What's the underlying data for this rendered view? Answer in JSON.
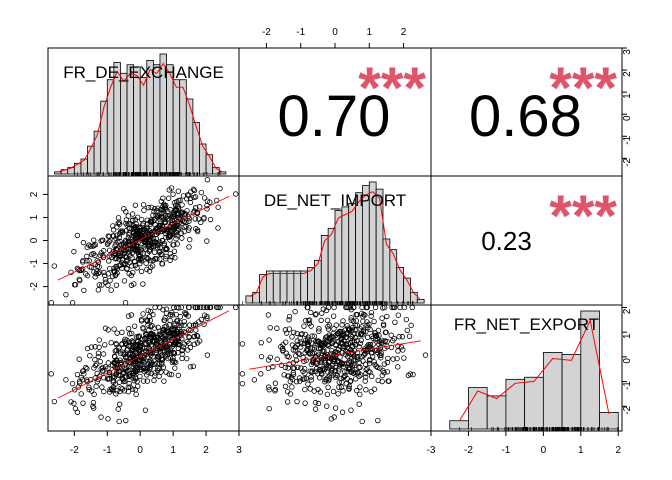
{
  "chart_data": {
    "type": "scatter-matrix",
    "variables": [
      "FR_DE_EXCHANGE",
      "DE_NET_IMPORT",
      "FR_NET_EXPORT"
    ],
    "correlations": [
      {
        "row": 0,
        "col": 1,
        "value": "0.70",
        "stars": "***"
      },
      {
        "row": 0,
        "col": 2,
        "value": "0.68",
        "stars": "***"
      },
      {
        "row": 1,
        "col": 2,
        "value": "0.23",
        "stars": "***"
      }
    ],
    "axis_ranges": {
      "FR_DE_EXCHANGE": [
        -2.8,
        3.0
      ],
      "DE_NET_IMPORT": [
        -2.8,
        2.8
      ],
      "FR_NET_EXPORT": [
        -3.0,
        2.1
      ]
    },
    "ticks": {
      "top_axis": [
        "-2",
        "-1",
        "0",
        "1",
        "2"
      ],
      "right_axis_row1": [
        "-2",
        "-1",
        "0",
        "1",
        "2",
        "3"
      ],
      "left_axis_row2": [
        "-2",
        "-1",
        "0",
        "1",
        "2"
      ],
      "right_axis_row3": [
        "-2",
        "-1",
        "0",
        "1",
        "2"
      ],
      "bottom_axis_col1": [
        "-2",
        "-1",
        "0",
        "1",
        "2",
        "3"
      ],
      "bottom_axis_col3": [
        "-3",
        "-2",
        "-1",
        "0",
        "1",
        "2"
      ]
    },
    "histograms": {
      "FR_DE_EXCHANGE": {
        "breaks": [
          -2.6,
          -2.4,
          -2.2,
          -2.0,
          -1.8,
          -1.6,
          -1.4,
          -1.2,
          -1.0,
          -0.8,
          -0.6,
          -0.4,
          -0.2,
          0.0,
          0.2,
          0.4,
          0.6,
          0.8,
          1.0,
          1.2,
          1.4,
          1.6,
          1.8,
          2.0,
          2.2,
          2.4,
          2.6
        ],
        "counts": [
          1,
          2,
          3,
          5,
          7,
          13,
          20,
          34,
          44,
          52,
          47,
          51,
          50,
          45,
          53,
          51,
          56,
          51,
          44,
          44,
          35,
          24,
          14,
          9,
          3,
          1
        ]
      },
      "DE_NET_IMPORT": {
        "breaks": [
          -2.6,
          -2.4,
          -2.2,
          -2.0,
          -1.8,
          -1.6,
          -1.4,
          -1.2,
          -1.0,
          -0.8,
          -0.6,
          -0.4,
          -0.2,
          0.0,
          0.2,
          0.4,
          0.6,
          0.8,
          1.0,
          1.2,
          1.4,
          1.6,
          1.8,
          2.0,
          2.2,
          2.4,
          2.6
        ],
        "counts": [
          2,
          3,
          8,
          9,
          9,
          9,
          9,
          9,
          9,
          10,
          12,
          19,
          21,
          26,
          27,
          28,
          31,
          33,
          34,
          32,
          18,
          15,
          10,
          7,
          3,
          1
        ]
      },
      "FR_NET_EXPORT": {
        "breaks": [
          -2.5,
          -2.0,
          -1.5,
          -1.0,
          -0.5,
          0.0,
          0.5,
          1.0,
          1.5,
          2.0
        ],
        "counts": [
          4,
          20,
          16,
          24,
          25,
          37,
          36,
          57,
          8
        ]
      }
    },
    "scatter_slopes": {
      "DE_NET_IMPORT_vs_FR_DE_EXCHANGE": 0.7,
      "FR_NET_EXPORT_vs_FR_DE_EXCHANGE": 0.68,
      "FR_NET_EXPORT_vs_DE_NET_IMPORT": 0.23
    },
    "colors": {
      "stars": "#df536b",
      "smooth_line": "#ff0000",
      "histogram_fill": "#d3d3d3",
      "frame": "#000000"
    },
    "grid": false,
    "legend": "none"
  }
}
